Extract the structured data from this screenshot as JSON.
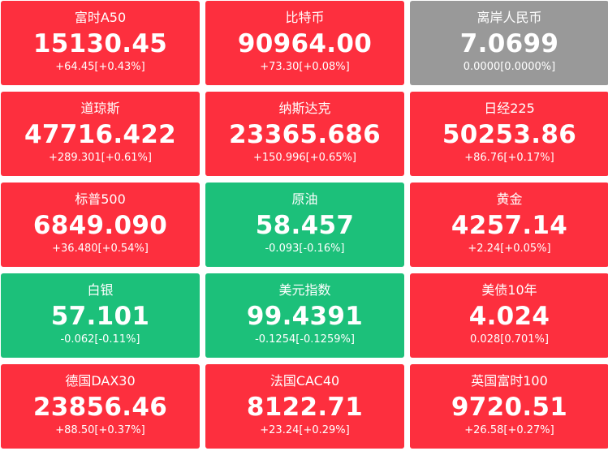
{
  "colors": {
    "up": "#fd2f3e",
    "down": "#1cc07a",
    "flat": "#999999",
    "text": "#ffffff"
  },
  "quotes": [
    {
      "name": "富时A50",
      "price": "15130.45",
      "change": "+64.45[+0.43%]",
      "trend": "up"
    },
    {
      "name": "比特币",
      "price": "90964.00",
      "change": "+73.30[+0.08%]",
      "trend": "up"
    },
    {
      "name": "离岸人民币",
      "price": "7.0699",
      "change": "0.0000[0.0000%]",
      "trend": "flat"
    },
    {
      "name": "道琼斯",
      "price": "47716.422",
      "change": "+289.301[+0.61%]",
      "trend": "up"
    },
    {
      "name": "纳斯达克",
      "price": "23365.686",
      "change": "+150.996[+0.65%]",
      "trend": "up"
    },
    {
      "name": "日经225",
      "price": "50253.86",
      "change": "+86.76[+0.17%]",
      "trend": "up"
    },
    {
      "name": "标普500",
      "price": "6849.090",
      "change": "+36.480[+0.54%]",
      "trend": "up"
    },
    {
      "name": "原油",
      "price": "58.457",
      "change": "-0.093[-0.16%]",
      "trend": "down"
    },
    {
      "name": "黄金",
      "price": "4257.14",
      "change": "+2.24[+0.05%]",
      "trend": "up"
    },
    {
      "name": "白银",
      "price": "57.101",
      "change": "-0.062[-0.11%]",
      "trend": "down"
    },
    {
      "name": "美元指数",
      "price": "99.4391",
      "change": "-0.1254[-0.1259%]",
      "trend": "down"
    },
    {
      "name": "美债10年",
      "price": "4.024",
      "change": "0.028[0.701%]",
      "trend": "up"
    },
    {
      "name": "德国DAX30",
      "price": "23856.46",
      "change": "+88.50[+0.37%]",
      "trend": "up"
    },
    {
      "name": "法国CAC40",
      "price": "8122.71",
      "change": "+23.24[+0.29%]",
      "trend": "up"
    },
    {
      "name": "英国富时100",
      "price": "9720.51",
      "change": "+26.58[+0.27%]",
      "trend": "up"
    }
  ]
}
